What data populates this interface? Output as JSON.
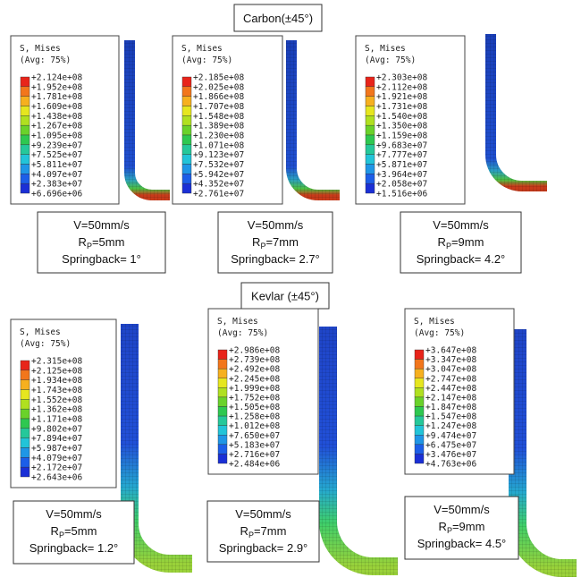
{
  "groups": [
    {
      "title": "Carbon(±45°)",
      "panels": [
        {
          "legend": {
            "title": "S, Mises",
            "avg": "(Avg: 75%)",
            "labels": [
              "+2.124e+08",
              "+1.952e+08",
              "+1.781e+08",
              "+1.609e+08",
              "+1.438e+08",
              "+1.267e+08",
              "+1.095e+08",
              "+9.239e+07",
              "+7.525e+07",
              "+5.811e+07",
              "+4.097e+07",
              "+2.383e+07",
              "+6.696e+06"
            ]
          },
          "condition": {
            "speed": "V=50mm/s",
            "r": "R",
            "r_sub": "P",
            "r_val": "=5mm",
            "springback": "Springback= 1°"
          }
        },
        {
          "legend": {
            "title": "S, Mises",
            "avg": "(Avg: 75%)",
            "labels": [
              "+2.185e+08",
              "+2.025e+08",
              "+1.866e+08",
              "+1.707e+08",
              "+1.548e+08",
              "+1.389e+08",
              "+1.230e+08",
              "+1.071e+08",
              "+9.123e+07",
              "+7.532e+07",
              "+5.942e+07",
              "+4.352e+07",
              "+2.761e+07"
            ]
          },
          "condition": {
            "speed": "V=50mm/s",
            "r": "R",
            "r_sub": "P",
            "r_val": "=7mm",
            "springback": "Springback= 2.7°"
          }
        },
        {
          "legend": {
            "title": "S, Mises",
            "avg": "(Avg: 75%)",
            "labels": [
              "+2.303e+08",
              "+2.112e+08",
              "+1.921e+08",
              "+1.731e+08",
              "+1.540e+08",
              "+1.350e+08",
              "+1.159e+08",
              "+9.683e+07",
              "+7.777e+07",
              "+5.871e+07",
              "+3.964e+07",
              "+2.058e+07",
              "+1.516e+06"
            ]
          },
          "condition": {
            "speed": "V=50mm/s",
            "r": "R",
            "r_sub": "P",
            "r_val": "=9mm",
            "springback": "Springback= 4.2°"
          }
        }
      ]
    },
    {
      "title": "Kevlar (±45°)",
      "panels": [
        {
          "legend": {
            "title": "S, Mises",
            "avg": "(Avg: 75%)",
            "labels": [
              "+2.315e+08",
              "+2.125e+08",
              "+1.934e+08",
              "+1.743e+08",
              "+1.552e+08",
              "+1.362e+08",
              "+1.171e+08",
              "+9.802e+07",
              "+7.894e+07",
              "+5.987e+07",
              "+4.079e+07",
              "+2.172e+07",
              "+2.643e+06"
            ]
          },
          "condition": {
            "speed": "V=50mm/s",
            "r": "R",
            "r_sub": "P",
            "r_val": "=5mm",
            "springback": "Springback= 1.2°"
          }
        },
        {
          "legend": {
            "title": "S, Mises",
            "avg": "(Avg: 75%)",
            "labels": [
              "+2.986e+08",
              "+2.739e+08",
              "+2.492e+08",
              "+2.245e+08",
              "+1.999e+08",
              "+1.752e+08",
              "+1.505e+08",
              "+1.258e+08",
              "+1.012e+08",
              "+7.650e+07",
              "+5.183e+07",
              "+2.716e+07",
              "+2.484e+06"
            ]
          },
          "condition": {
            "speed": "V=50mm/s",
            "r": "R",
            "r_sub": "P",
            "r_val": "=7mm",
            "springback": "Springback= 2.9°"
          }
        },
        {
          "legend": {
            "title": "S, Mises",
            "avg": "(Avg: 75%)",
            "labels": [
              "+3.647e+08",
              "+3.347e+08",
              "+3.047e+08",
              "+2.747e+08",
              "+2.447e+08",
              "+2.147e+08",
              "+1.847e+08",
              "+1.547e+08",
              "+1.247e+08",
              "+9.474e+07",
              "+6.475e+07",
              "+3.476e+07",
              "+4.763e+06"
            ]
          },
          "condition": {
            "speed": "V=50mm/s",
            "r": "R",
            "r_sub": "P",
            "r_val": "=9mm",
            "springback": "Springback= 4.5°"
          }
        }
      ]
    }
  ]
}
